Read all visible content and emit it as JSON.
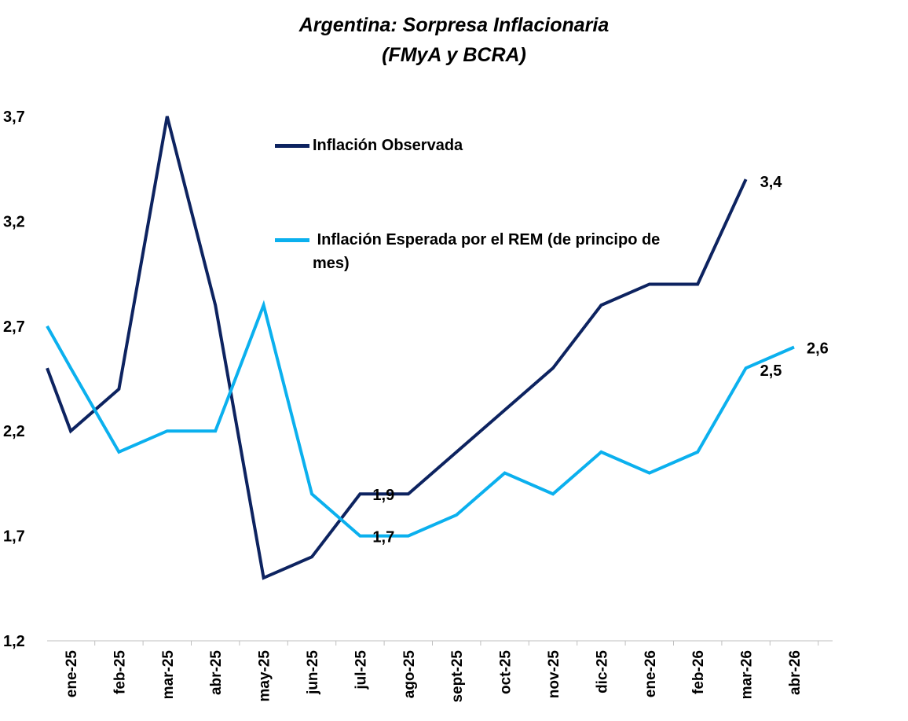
{
  "chart_data": {
    "type": "line",
    "title_line1": "Argentina: Sorpresa Inflacionaria",
    "title_line2": "(FMyA y BCRA)",
    "xlabel": "",
    "ylabel": "",
    "categories": [
      "ene-25",
      "feb-25",
      "mar-25",
      "abr-25",
      "may-25",
      "jun-25",
      "jul-25",
      "ago-25",
      "sept-25",
      "oct-25",
      "nov-25",
      "dic-25",
      "ene-26",
      "feb-26",
      "mar-26",
      "abr-26"
    ],
    "yticks": [
      "3,7",
      "3,2",
      "2,7",
      "2,2",
      "1,7",
      "1,2"
    ],
    "ytick_values": [
      3.7,
      3.2,
      2.7,
      2.2,
      1.7,
      1.2
    ],
    "ylim": [
      1.2,
      3.7
    ],
    "grid": false,
    "legend_position": "top-center",
    "series": [
      {
        "name": "Inflación Observada",
        "color": "#0d2360",
        "values": [
          2.2,
          2.4,
          3.7,
          2.8,
          1.5,
          1.6,
          1.9,
          1.9,
          2.1,
          2.3,
          2.5,
          2.8,
          2.9,
          2.9,
          3.4,
          null
        ],
        "start_value": 2.5
      },
      {
        "name": " Inflación Esperada por el REM (de principo de mes)",
        "color": "#0bb0ee",
        "values": [
          2.5,
          2.1,
          2.2,
          2.2,
          2.8,
          1.9,
          1.7,
          1.7,
          1.8,
          2.0,
          1.9,
          2.1,
          2.0,
          2.1,
          2.5,
          2.6
        ],
        "start_value": 2.7
      }
    ],
    "data_labels": [
      {
        "series": 0,
        "index": 6,
        "text": "1,9"
      },
      {
        "series": 1,
        "index": 6,
        "text": "1,7"
      },
      {
        "series": 0,
        "index": 14,
        "text": "3,4"
      },
      {
        "series": 1,
        "index": 14,
        "text": "2,5"
      },
      {
        "series": 1,
        "index": 15,
        "text": "2,6"
      }
    ]
  }
}
